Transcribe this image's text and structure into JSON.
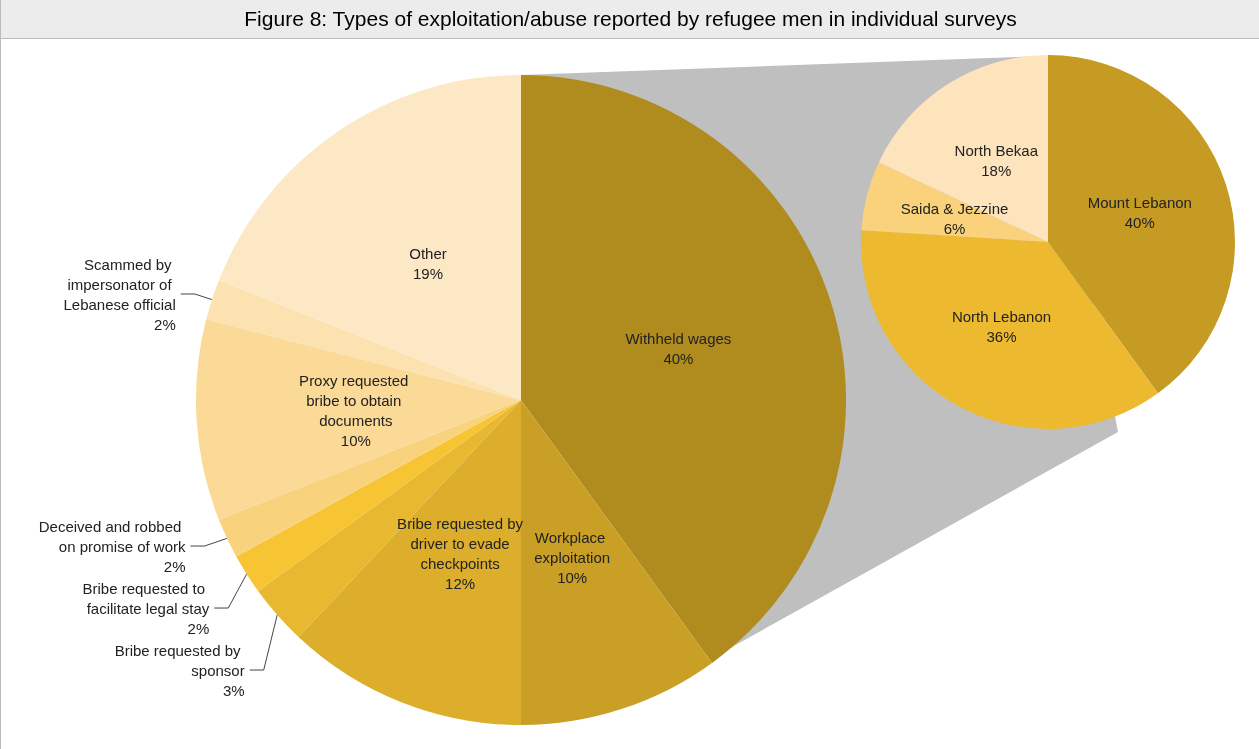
{
  "chart_data": [
    {
      "type": "pie",
      "title": "Figure 8: Types of exploitation/abuse reported by refugee men in individual surveys",
      "categories": [
        "Withheld wages",
        "Workplace exploitation",
        "Bribe requested by driver to evade checkpoints",
        "Bribe requested by sponsor",
        "Bribe requested to facilitate legal stay",
        "Deceived and robbed on promise of work",
        "Proxy requested bribe to obtain documents",
        "Scammed by impersonator of Lebanese official",
        "Other"
      ],
      "values": [
        40,
        10,
        12,
        3,
        2,
        2,
        10,
        2,
        19
      ],
      "value_labels": [
        "40%",
        "10%",
        "12%",
        "3%",
        "2%",
        "2%",
        "10%",
        "2%",
        "19%"
      ],
      "colors": [
        "#b08b1e",
        "#c99f26",
        "#dcae2c",
        "#e7b830",
        "#f7c534",
        "#f9d27e",
        "#fbd996",
        "#fce2b0",
        "#fde8c5"
      ]
    },
    {
      "type": "pie",
      "categories": [
        "Mount Lebanon",
        "North Lebanon",
        "Saida & Jezzine",
        "North Bekaa"
      ],
      "values": [
        40,
        36,
        6,
        18
      ],
      "value_labels": [
        "40%",
        "36%",
        "6%",
        "18%"
      ],
      "colors": [
        "#c59b24",
        "#ecb92f",
        "#fbd27c",
        "#fde4bd"
      ]
    }
  ]
}
